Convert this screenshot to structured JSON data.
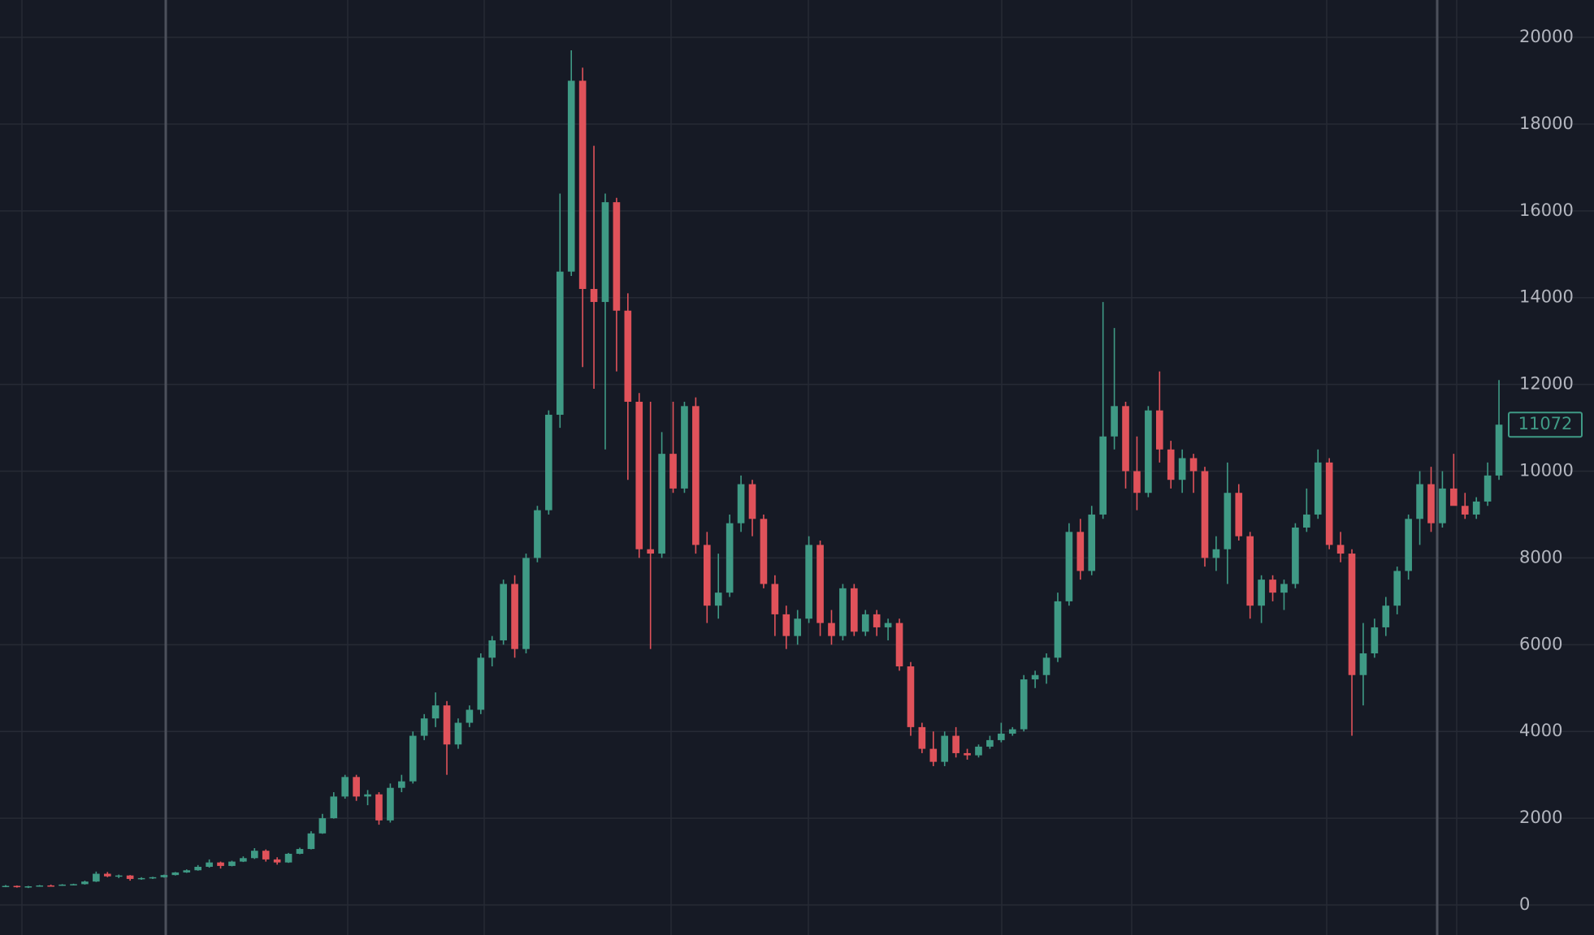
{
  "chart_data": {
    "type": "candlestick",
    "ylim": [
      -692,
      20861
    ],
    "yticks": [
      0,
      2000,
      4000,
      6000,
      8000,
      10000,
      12000,
      14000,
      16000,
      18000,
      20000
    ],
    "grid": true,
    "up_color": "#3f9a85",
    "down_color": "#e0525a",
    "open": [
      430,
      440,
      410,
      430,
      450,
      445,
      470,
      480,
      540,
      720,
      660,
      680,
      600,
      620,
      640,
      690,
      750,
      800,
      880,
      980,
      900,
      1000,
      1080,
      1250,
      1050,
      980,
      1180,
      1290,
      1650,
      2000,
      2500,
      2950,
      2500,
      2550,
      1950,
      2700,
      2850,
      3900,
      4300,
      4600,
      3700,
      4200,
      4500,
      5700,
      6100,
      7400,
      5900,
      8000,
      9100,
      11300,
      14600,
      19000,
      14200,
      13900,
      16200,
      13700,
      11600,
      8200,
      8100,
      10400,
      9600,
      11500,
      8300,
      6900,
      7200,
      8800,
      9700,
      8900,
      7400,
      6700,
      6200,
      6600,
      8300,
      6500,
      6200,
      7300,
      6300,
      6700,
      6400,
      6500,
      5500,
      4100,
      3600,
      3300,
      3900,
      3500,
      3450,
      3650,
      3800,
      3950,
      4050,
      5200,
      5300,
      5700,
      7000,
      8600,
      7700,
      9000,
      10800,
      11500,
      10000,
      9500,
      11400,
      10500,
      9800,
      10300,
      10000,
      8000,
      8200,
      9500,
      8500,
      6900,
      7500,
      7200,
      7400,
      8700,
      9000,
      10200,
      8300,
      8100,
      5300,
      5800,
      6400,
      6900,
      7700,
      8900,
      9700,
      8800,
      9600,
      9200,
      9000,
      9300,
      9900
    ],
    "high": [
      460,
      450,
      440,
      460,
      470,
      480,
      490,
      560,
      770,
      760,
      700,
      690,
      640,
      650,
      700,
      760,
      820,
      920,
      1050,
      1000,
      1020,
      1120,
      1310,
      1280,
      1100,
      1200,
      1320,
      1700,
      2100,
      2600,
      3000,
      3000,
      2650,
      2600,
      2800,
      3000,
      4000,
      4400,
      4900,
      4700,
      4300,
      4600,
      5800,
      6200,
      7500,
      7600,
      8100,
      9200,
      11400,
      16400,
      19700,
      19300,
      17500,
      16400,
      16300,
      14100,
      11800,
      11600,
      10900,
      11600,
      11600,
      11700,
      8600,
      8100,
      9000,
      9900,
      9800,
      9000,
      7600,
      6900,
      6800,
      8500,
      8400,
      6800,
      7400,
      7400,
      6800,
      6800,
      6600,
      6600,
      5600,
      4200,
      4000,
      4000,
      4100,
      3600,
      3700,
      3900,
      4200,
      4100,
      5300,
      5400,
      5800,
      7200,
      8800,
      8900,
      9200,
      13900,
      13300,
      11600,
      10800,
      11500,
      12300,
      10700,
      10500,
      10400,
      10100,
      8500,
      10200,
      9700,
      8600,
      7600,
      7600,
      7500,
      8800,
      9600,
      10500,
      10300,
      8600,
      8200,
      6500,
      6600,
      7100,
      7800,
      9000,
      10000,
      10100,
      10000,
      10400,
      9500,
      9400,
      10200,
      12100
    ],
    "low": [
      410,
      400,
      390,
      420,
      430,
      440,
      455,
      470,
      530,
      640,
      620,
      560,
      580,
      600,
      630,
      680,
      740,
      790,
      860,
      840,
      890,
      990,
      1060,
      1000,
      930,
      970,
      1170,
      1280,
      1640,
      1990,
      2450,
      2400,
      2300,
      1850,
      1900,
      2600,
      2800,
      3800,
      4100,
      3000,
      3600,
      4100,
      4400,
      5500,
      6000,
      5700,
      5800,
      7900,
      9000,
      11000,
      14500,
      12400,
      11900,
      10500,
      12300,
      9800,
      8000,
      5900,
      8000,
      9500,
      9500,
      8100,
      6500,
      6600,
      7100,
      8600,
      8500,
      7300,
      6200,
      5900,
      6000,
      6500,
      6200,
      6000,
      6100,
      6200,
      6200,
      6200,
      6100,
      5400,
      3900,
      3500,
      3200,
      3200,
      3400,
      3350,
      3400,
      3600,
      3750,
      3900,
      4000,
      5000,
      5100,
      5600,
      6900,
      7500,
      7600,
      8900,
      10500,
      9600,
      9100,
      9400,
      10200,
      9600,
      9500,
      9500,
      7800,
      7700,
      7400,
      8400,
      6600,
      6500,
      7000,
      6800,
      7300,
      8600,
      8900,
      8200,
      7900,
      3900,
      4600,
      5700,
      6200,
      6700,
      7500,
      8300,
      8600,
      8700,
      9300,
      8900,
      8900,
      9200,
      9800
    ],
    "close": [
      440,
      410,
      430,
      450,
      445,
      470,
      480,
      540,
      720,
      660,
      680,
      600,
      620,
      640,
      690,
      750,
      800,
      880,
      980,
      900,
      1000,
      1080,
      1250,
      1050,
      980,
      1180,
      1290,
      1650,
      2000,
      2500,
      2950,
      2500,
      2550,
      1950,
      2700,
      2850,
      3900,
      4300,
      4600,
      3700,
      4200,
      4500,
      5700,
      6100,
      7400,
      5900,
      8000,
      9100,
      11300,
      14600,
      19000,
      14200,
      13900,
      16200,
      13700,
      11600,
      8200,
      8100,
      10400,
      9600,
      11500,
      8300,
      6900,
      7200,
      8800,
      9700,
      8900,
      7400,
      6700,
      6200,
      6600,
      8300,
      6500,
      6200,
      7300,
      6300,
      6700,
      6400,
      6500,
      5500,
      4100,
      3600,
      3300,
      3900,
      3500,
      3450,
      3650,
      3800,
      3950,
      4050,
      5200,
      5300,
      5700,
      7000,
      8600,
      7700,
      9000,
      10800,
      11500,
      10000,
      9500,
      11400,
      10500,
      9800,
      10300,
      10000,
      8000,
      8200,
      9500,
      8500,
      6900,
      7500,
      7200,
      7400,
      8700,
      9000,
      10200,
      8300,
      8100,
      5300,
      5800,
      6400,
      6900,
      7700,
      8900,
      9700,
      8800,
      9600,
      9200,
      9000,
      9300,
      9900,
      11072
    ]
  }
}
